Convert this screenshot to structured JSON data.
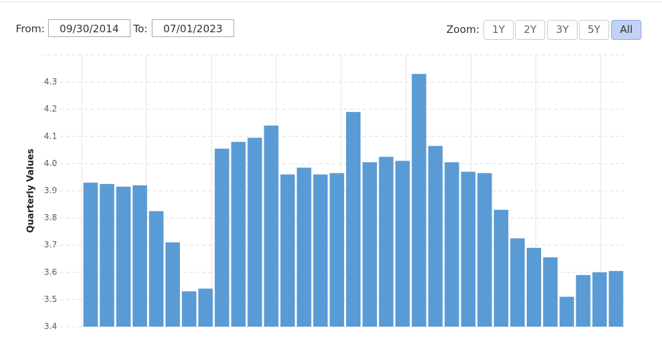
{
  "controls": {
    "from_label": "From:",
    "from_value": "09/30/2014",
    "to_label": "To:",
    "to_value": "07/01/2023",
    "zoom_label": "Zoom:",
    "zoom_buttons": [
      "1Y",
      "2Y",
      "3Y",
      "5Y",
      "All"
    ],
    "active_zoom": 4
  },
  "chart_data": {
    "type": "bar",
    "y_label": "Quarterly Values",
    "color": "#5b9bd5",
    "values": [
      3.93,
      3.925,
      3.915,
      3.92,
      3.825,
      3.71,
      3.53,
      3.54,
      4.055,
      4.08,
      4.095,
      4.14,
      3.96,
      3.985,
      3.96,
      3.965,
      4.19,
      4.005,
      4.025,
      4.01,
      4.33,
      4.065,
      4.005,
      3.97,
      3.965,
      3.83,
      3.725,
      3.69,
      3.655,
      3.51,
      3.59,
      3.6,
      3.605
    ],
    "ylim": [
      3.4,
      4.4
    ],
    "yticks": [
      {
        "value": 3.4,
        "label": "3.4"
      },
      3.5,
      3.6,
      3.7,
      3.8,
      3.9,
      {
        "value": 4,
        "label": "4.0"
      },
      4.1,
      4.2,
      4.3
    ],
    "grid": true
  }
}
